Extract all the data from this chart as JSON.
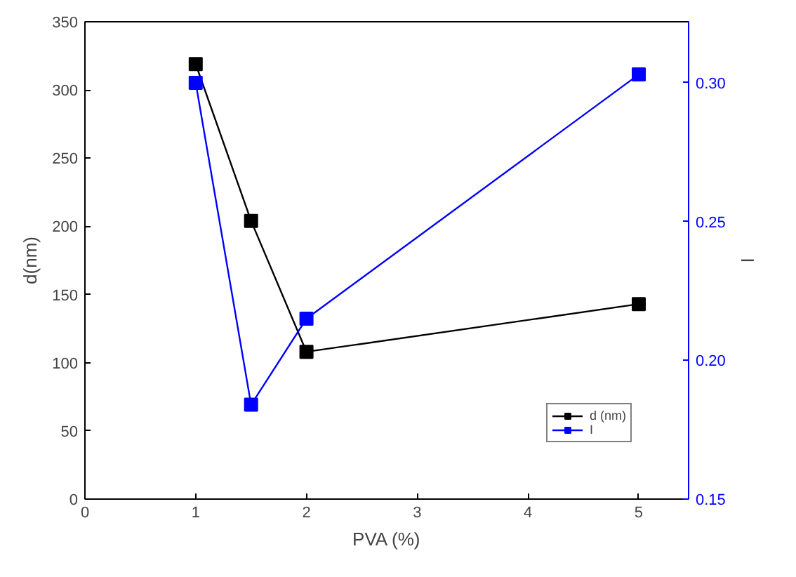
{
  "chart_data": {
    "type": "line",
    "xlabel": "PVA (%)",
    "ylabel": "d(nm)",
    "y2label": "I",
    "x": [
      1,
      1.5,
      2,
      5
    ],
    "series": [
      {
        "name": "d (nm)",
        "color": "#000000",
        "values": [
          319,
          204,
          108,
          143
        ]
      },
      {
        "name": "I",
        "color": "#0000ff",
        "axis": "y2",
        "values": [
          0.3,
          0.184,
          0.215,
          0.303
        ]
      }
    ],
    "xlim": [
      0,
      5.45
    ],
    "xticks": [
      0,
      1,
      2,
      3,
      4,
      5
    ],
    "ylim": [
      0,
      350
    ],
    "yticks": [
      0,
      50,
      100,
      150,
      200,
      250,
      300,
      350
    ],
    "y2lim": [
      0.15,
      0.322
    ],
    "y2ticks": [
      {
        "value": 0.15,
        "label": "0.15"
      },
      {
        "value": 0.2,
        "label": "0.20"
      },
      {
        "value": 0.25,
        "label": "0.25"
      },
      {
        "value": 0.3,
        "label": "0.30"
      }
    ],
    "grid": false,
    "legend": "bottom right",
    "marker": "square",
    "line_style": "solid"
  }
}
